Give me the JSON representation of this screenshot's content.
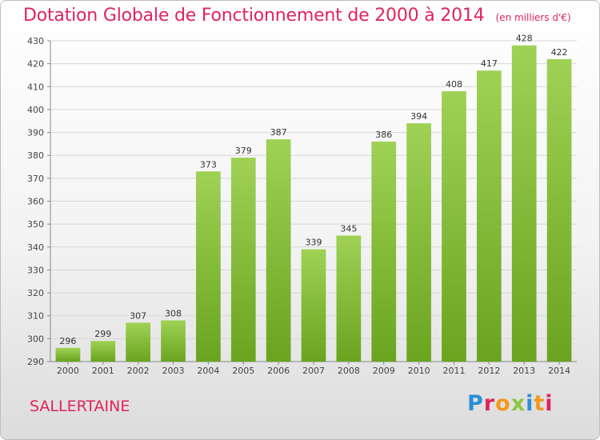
{
  "header": {
    "title": "Dotation Globale de Fonctionnement de 2000 à 2014",
    "subtitle": "(en milliers d'€)"
  },
  "footer": {
    "commune": "SALLERTAINE",
    "logo": "Proxiti"
  },
  "colors": {
    "accent": "#e0245e",
    "bar_light": "#9fd155",
    "bar_dark": "#6aa41f"
  },
  "chart_data": {
    "type": "bar",
    "title": "Dotation Globale de Fonctionnement de 2000 à 2014",
    "subtitle": "(en milliers d'€)",
    "categories": [
      "2000",
      "2001",
      "2002",
      "2003",
      "2004",
      "2005",
      "2006",
      "2007",
      "2008",
      "2009",
      "2010",
      "2011",
      "2012",
      "2013",
      "2014"
    ],
    "values": [
      296,
      299,
      307,
      308,
      373,
      379,
      387,
      339,
      345,
      386,
      394,
      408,
      417,
      428,
      422
    ],
    "ylim": [
      290,
      430
    ],
    "yticks": [
      290,
      300,
      310,
      320,
      330,
      340,
      350,
      360,
      370,
      380,
      390,
      400,
      410,
      420,
      430
    ],
    "grid": true,
    "xlabel": "",
    "ylabel": ""
  }
}
